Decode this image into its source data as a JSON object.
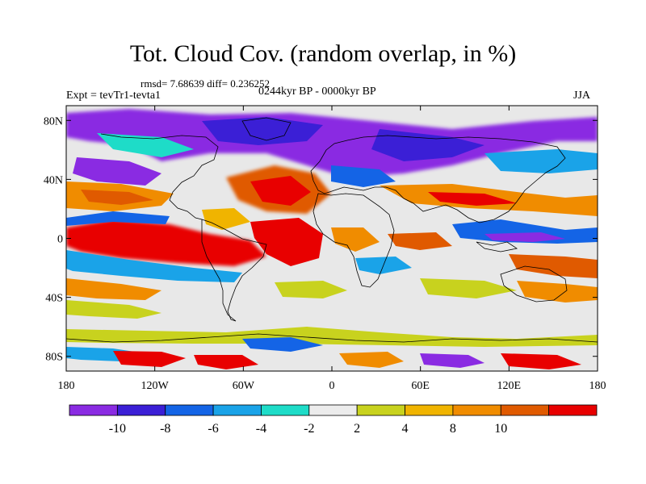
{
  "header": {
    "title": "Tot. Cloud Cov. (random overlap, in %)",
    "stats": "rmsd= 7.68639 diff= 0.236252",
    "experiment": "Expt = tevTr1-tevta1",
    "period": "0244kyr BP - 0000kyr BP",
    "season": "JJA"
  },
  "map": {
    "lat_ticks": [
      {
        "label": "80N",
        "lat": 80
      },
      {
        "label": "40N",
        "lat": 40
      },
      {
        "label": "0",
        "lat": 0
      },
      {
        "label": "40S",
        "lat": -40
      },
      {
        "label": "80S",
        "lat": -80
      }
    ],
    "lon_ticks": [
      {
        "label": "180",
        "lon": -180
      },
      {
        "label": "120W",
        "lon": -120
      },
      {
        "label": "60W",
        "lon": -60
      },
      {
        "label": "0",
        "lon": 0
      },
      {
        "label": "60E",
        "lon": 60
      },
      {
        "label": "120E",
        "lon": 120
      },
      {
        "label": "180",
        "lon": 180
      }
    ],
    "lat_range": [
      -90,
      90
    ],
    "lon_range": [
      -180,
      180
    ],
    "background_color": "#e8e8e8"
  },
  "colorbar": {
    "colors": [
      "#8a2be2",
      "#3b1fd6",
      "#1464e6",
      "#1aa3e8",
      "#1edcc8",
      "#ececec",
      "#c8d21e",
      "#f0b400",
      "#f08c00",
      "#e05a00",
      "#e80000"
    ],
    "labels": [
      "-10",
      "-8",
      "-6",
      "-4",
      "-2",
      "2",
      "4",
      "8",
      "10"
    ]
  }
}
